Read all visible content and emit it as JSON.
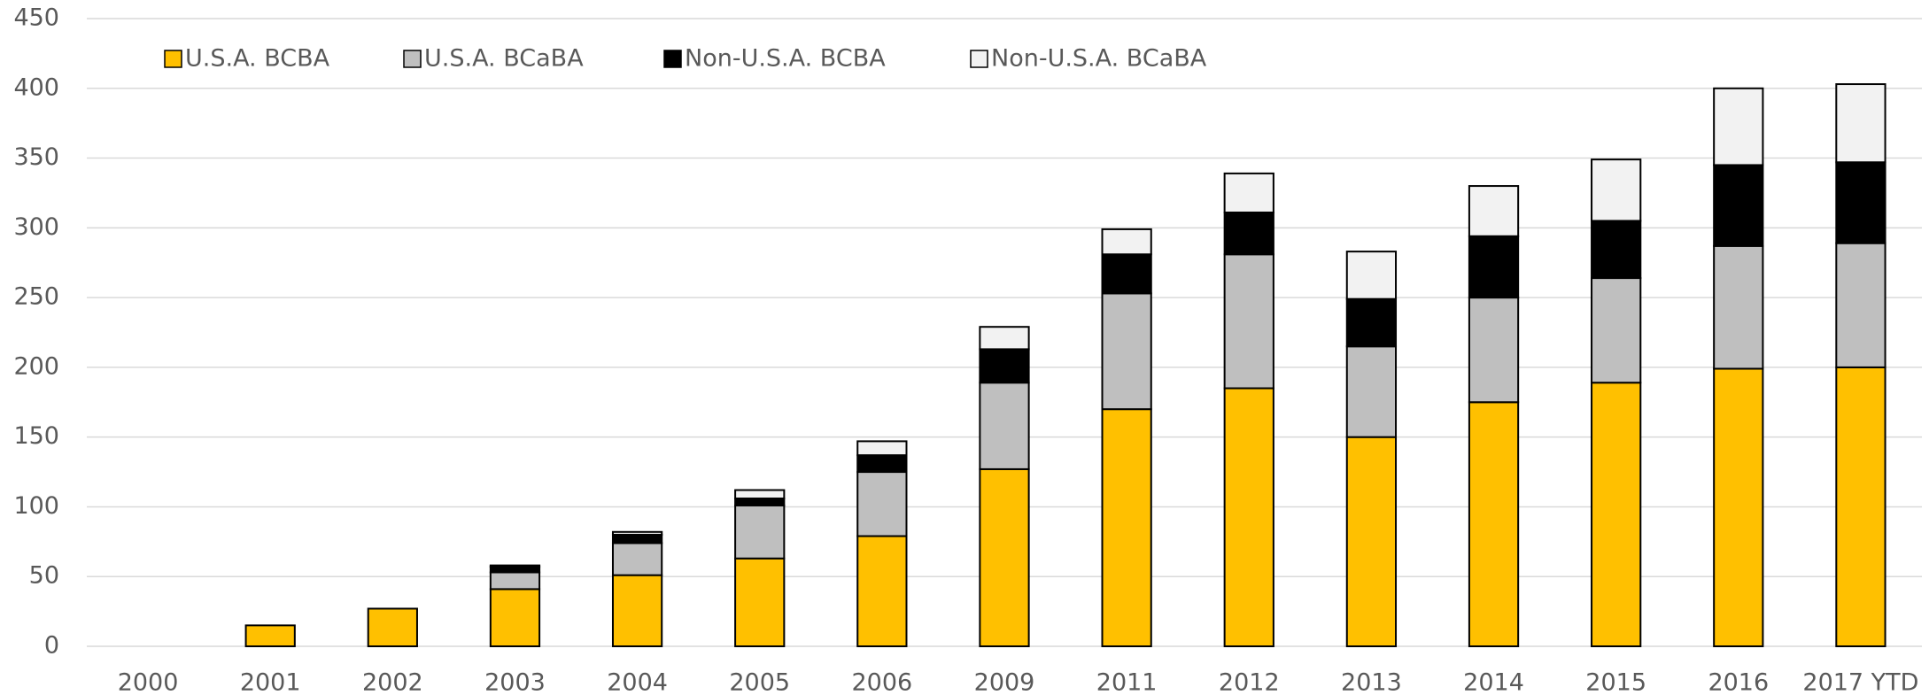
{
  "chart_data": {
    "type": "stacked_bar",
    "categories": [
      "2000",
      "2001",
      "2002",
      "2003",
      "2004",
      "2005",
      "2006",
      "2009",
      "2011",
      "2012",
      "2013",
      "2014",
      "2015",
      "2016",
      "2017 YTD"
    ],
    "series": [
      {
        "name": "U.S.A. BCBA",
        "color": "#FFC000",
        "values": [
          0,
          15,
          27,
          41,
          51,
          63,
          79,
          127,
          170,
          185,
          150,
          175,
          189,
          199,
          200
        ]
      },
      {
        "name": "U.S.A. BCaBA",
        "color": "#BFBFBF",
        "values": [
          0,
          0,
          0,
          12,
          23,
          38,
          46,
          62,
          83,
          96,
          65,
          75,
          75,
          88,
          89
        ]
      },
      {
        "name": "Non-U.S.A. BCBA",
        "color": "#000000",
        "values": [
          0,
          0,
          0,
          4,
          6,
          5,
          12,
          24,
          28,
          30,
          34,
          44,
          41,
          58,
          58
        ]
      },
      {
        "name": "Non-U.S.A. BCaBA",
        "color": "#F2F2F2",
        "values": [
          0,
          0,
          0,
          1,
          2,
          6,
          10,
          16,
          18,
          28,
          34,
          36,
          44,
          55,
          56
        ]
      }
    ],
    "ylim": [
      0,
      450
    ],
    "yticks": [
      0,
      50,
      100,
      150,
      200,
      250,
      300,
      350,
      400,
      450
    ],
    "grid": true,
    "legend": "top-left"
  }
}
